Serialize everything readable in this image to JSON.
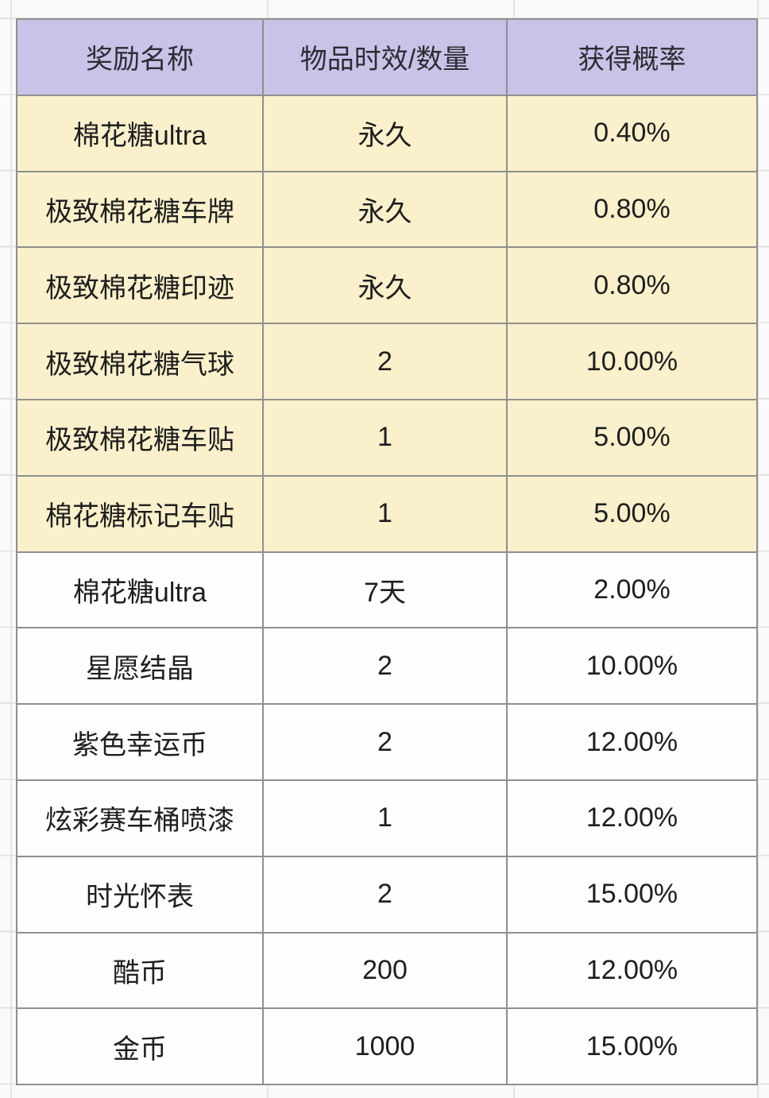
{
  "chart_data": {
    "type": "table",
    "columns": [
      "奖励名称",
      "物品时效/数量",
      "获得概率"
    ],
    "rows": [
      [
        "棉花糖ultra",
        "永久",
        "0.40%"
      ],
      [
        "极致棉花糖车牌",
        "永久",
        "0.80%"
      ],
      [
        "极致棉花糖印迹",
        "永久",
        "0.80%"
      ],
      [
        "极致棉花糖气球",
        "2",
        "10.00%"
      ],
      [
        "极致棉花糖车贴",
        "1",
        "5.00%"
      ],
      [
        "棉花糖标记车贴",
        "1",
        "5.00%"
      ],
      [
        "棉花糖ultra",
        "7天",
        "2.00%"
      ],
      [
        "星愿结晶",
        "2",
        "10.00%"
      ],
      [
        "紫色幸运币",
        "2",
        "12.00%"
      ],
      [
        "炫彩赛车桶喷漆",
        "1",
        "12.00%"
      ],
      [
        "时光怀表",
        "2",
        "15.00%"
      ],
      [
        "酷币",
        "200",
        "12.00%"
      ],
      [
        "金币",
        "1000",
        "15.00%"
      ]
    ],
    "highlighted_row_indices": [
      0,
      1,
      2,
      3,
      4,
      5
    ],
    "header_fill": "#c8c3e7",
    "row_fill_highlight": "#fbf0cc",
    "row_fill_default": "#fefefe",
    "grid_border_color": "#8f8f8f"
  }
}
